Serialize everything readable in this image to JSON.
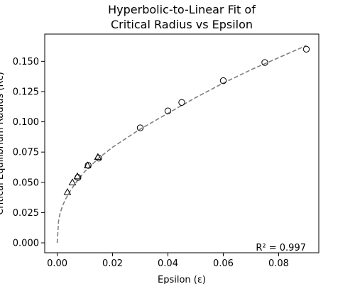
{
  "chart_data": {
    "type": "scatter",
    "title_line1": "Hyperbolic-to-Linear Fit of",
    "title_line2": "Critical Radius vs Epsilon",
    "xlabel": "Epsilon (ε)",
    "ylabel": "Critical Equilibrium Radius (Rc)",
    "xlim": [
      -0.0045,
      0.0945
    ],
    "ylim": [
      -0.0082,
      0.1725
    ],
    "xticks": [
      0.0,
      0.02,
      0.04,
      0.06,
      0.08
    ],
    "xtick_labels": [
      "0.00",
      "0.02",
      "0.04",
      "0.06",
      "0.08"
    ],
    "yticks": [
      0.0,
      0.025,
      0.05,
      0.075,
      0.1,
      0.125,
      0.15
    ],
    "ytick_labels": [
      "0.000",
      "0.025",
      "0.050",
      "0.075",
      "0.100",
      "0.125",
      "0.150"
    ],
    "grid": false,
    "annotation": "R² = 0.997",
    "series": [
      {
        "marker": "triangle",
        "color": "#000000",
        "x": [
          0.0037,
          0.0055,
          0.0073,
          0.011,
          0.0147
        ],
        "y": [
          0.042,
          0.05,
          0.055,
          0.064,
          0.071
        ]
      },
      {
        "marker": "circle",
        "color": "#000000",
        "x": [
          0.0075,
          0.0112,
          0.015,
          0.03,
          0.04,
          0.045,
          0.06,
          0.075,
          0.09
        ],
        "y": [
          0.054,
          0.064,
          0.07,
          0.095,
          0.109,
          0.116,
          0.134,
          0.149,
          0.16
        ]
      },
      {
        "marker": "dashed-line",
        "color": "#808080",
        "x": [
          0.0,
          0.0005,
          0.001,
          0.002,
          0.003,
          0.005,
          0.0075,
          0.01,
          0.015,
          0.02,
          0.03,
          0.04,
          0.05,
          0.06,
          0.07,
          0.08,
          0.09
        ],
        "y": [
          0.0,
          0.018,
          0.024,
          0.031,
          0.036,
          0.044,
          0.052,
          0.059,
          0.07,
          0.079,
          0.094,
          0.107,
          0.12,
          0.132,
          0.143,
          0.153,
          0.163
        ]
      }
    ]
  }
}
